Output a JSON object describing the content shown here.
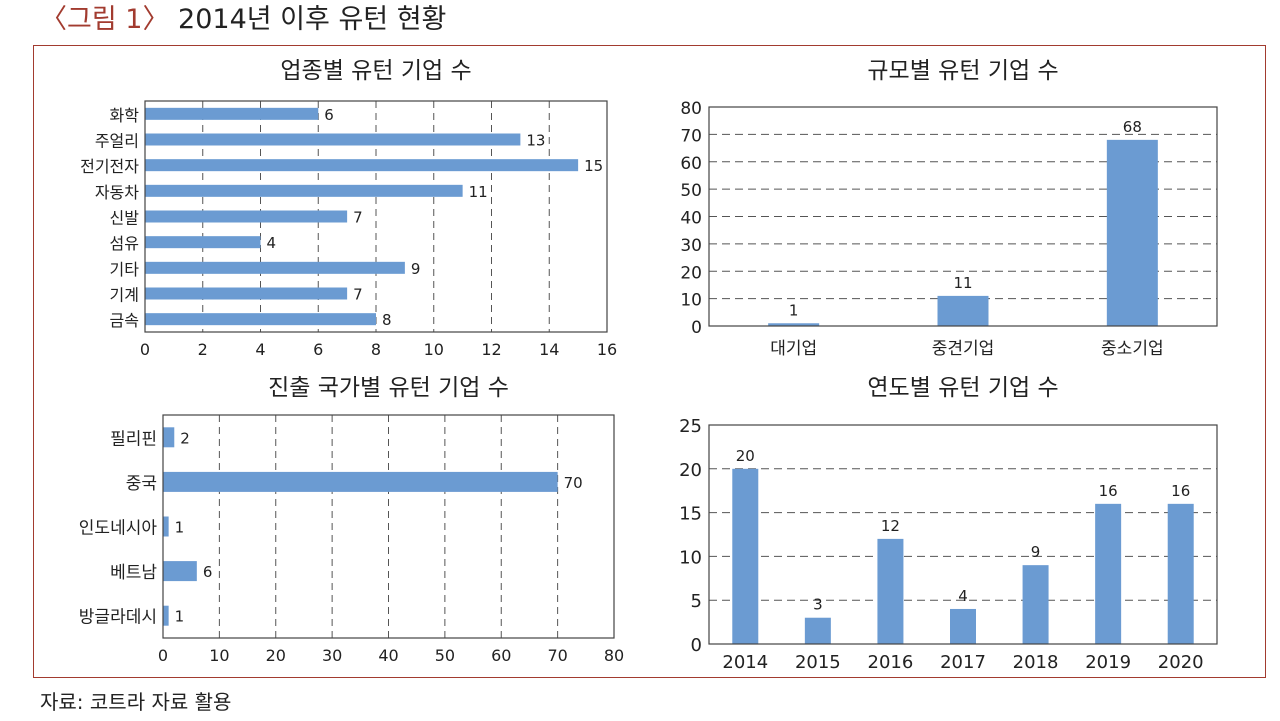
{
  "figure": {
    "label_open": "〈그림 1〉",
    "title": "2014년 이후 유턴 현황"
  },
  "source": "자료: 코트라 자료 활용",
  "colors": {
    "bar": "#6b9bd2",
    "frame": "#a23b2f",
    "grid": "#555555"
  },
  "chart_data": [
    {
      "type": "bar",
      "orientation": "horizontal",
      "title": "업종별 유턴 기업 수",
      "categories": [
        "화학",
        "주얼리",
        "전기전자",
        "자동차",
        "신발",
        "섬유",
        "기타",
        "기계",
        "금속"
      ],
      "values": [
        6,
        13,
        15,
        11,
        7,
        4,
        9,
        7,
        8
      ],
      "xlim": [
        0,
        16
      ],
      "ticks": [
        0,
        2,
        4,
        6,
        8,
        10,
        12,
        14,
        16
      ],
      "grid": "vertical dashed"
    },
    {
      "type": "bar",
      "orientation": "vertical",
      "title": "규모별 유턴 기업 수",
      "categories": [
        "대기업",
        "중견기업",
        "중소기업"
      ],
      "values": [
        1,
        11,
        68
      ],
      "ylim": [
        0,
        80
      ],
      "ticks": [
        0,
        10,
        20,
        30,
        40,
        50,
        60,
        70,
        80
      ],
      "grid": "horizontal dashed"
    },
    {
      "type": "bar",
      "orientation": "horizontal",
      "title": "진출 국가별 유턴 기업 수",
      "categories": [
        "필리핀",
        "중국",
        "인도네시아",
        "베트남",
        "방글라데시"
      ],
      "values": [
        2,
        70,
        1,
        6,
        1
      ],
      "xlim": [
        0,
        80
      ],
      "ticks": [
        0,
        10,
        20,
        30,
        40,
        50,
        60,
        70,
        80
      ],
      "grid": "vertical dashed"
    },
    {
      "type": "bar",
      "orientation": "vertical",
      "title": "연도별 유턴 기업 수",
      "categories": [
        "2014",
        "2015",
        "2016",
        "2017",
        "2018",
        "2019",
        "2020"
      ],
      "values": [
        20,
        3,
        12,
        4,
        9,
        16,
        16
      ],
      "ylim": [
        0,
        25
      ],
      "ticks": [
        0,
        5,
        10,
        15,
        20,
        25
      ],
      "grid": "horizontal dashed"
    }
  ]
}
